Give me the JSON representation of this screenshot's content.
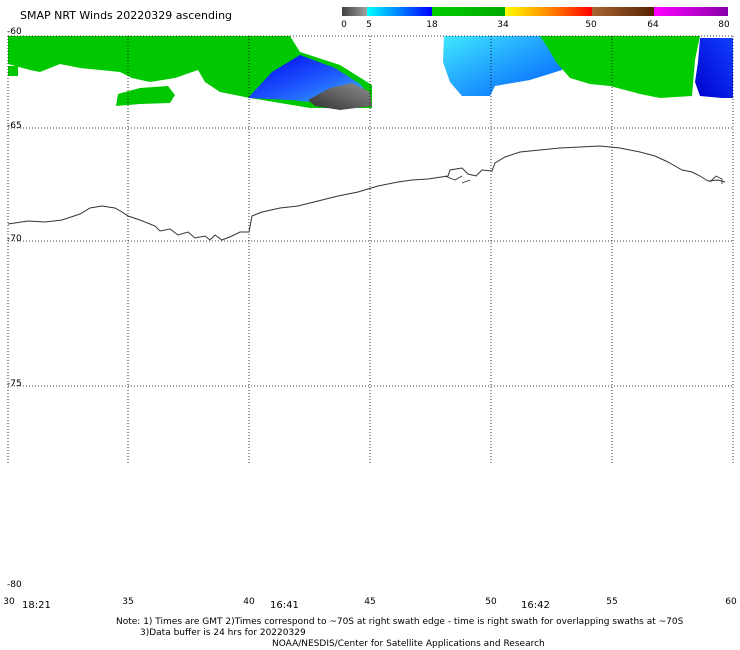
{
  "title": "SMAP NRT Winds 20220329 ascending",
  "colorbar": {
    "labels": [
      "0",
      "5",
      "18",
      "34",
      "50",
      "64",
      "80"
    ],
    "segments": [
      {
        "from": 0,
        "to": 5,
        "colors": [
          "#404040",
          "#a0a0a0"
        ]
      },
      {
        "from": 5,
        "to": 18,
        "colors": [
          "#00ffff",
          "#0000ff"
        ]
      },
      {
        "from": 18,
        "to": 34,
        "colors": [
          "#00cc00",
          "#00aa00"
        ]
      },
      {
        "from": 34,
        "to": 50,
        "colors": [
          "#ffff00",
          "#ff8800",
          "#ff0000"
        ]
      },
      {
        "from": 50,
        "to": 64,
        "colors": [
          "#aa6633",
          "#552200"
        ]
      },
      {
        "from": 64,
        "to": 80,
        "colors": [
          "#ff00ff",
          "#8800aa"
        ]
      }
    ]
  },
  "map": {
    "lat_labels": [
      "-60",
      "-65",
      "-70",
      "-75",
      "-80"
    ],
    "lon_labels": [
      "30",
      "35",
      "40",
      "45",
      "50",
      "55",
      "60"
    ],
    "time_labels": [
      "18:21",
      "16:41",
      "16:42"
    ]
  },
  "notes": {
    "line1": "Note: 1) Times are GMT 2)Times correspond to ~70S at right swath edge - time is right swath for overlapping swaths at ~70S",
    "line2": "3)Data buffer is 24 hrs for 20220329",
    "line3": "NOAA/NESDIS/Center for Satellite Applications and Research"
  }
}
